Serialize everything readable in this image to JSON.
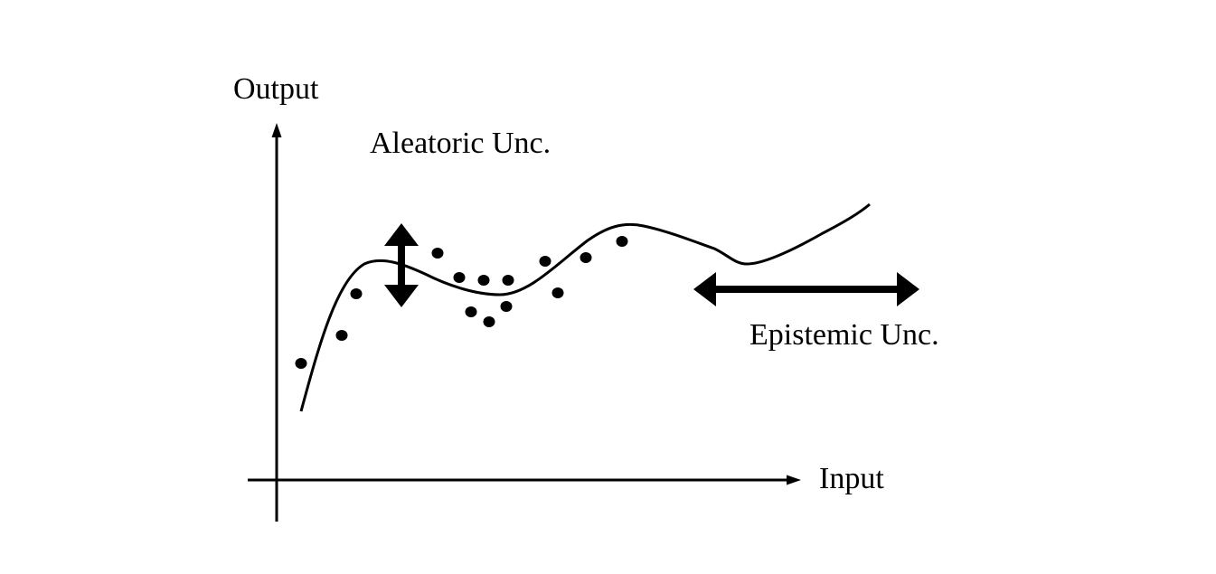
{
  "labels": {
    "y_axis": "Output",
    "x_axis": "Input",
    "aleatoric": "Aleatoric Unc.",
    "epistemic": "Epistemic Unc."
  },
  "colors": {
    "ink": "#000000",
    "background": "#ffffff"
  }
}
